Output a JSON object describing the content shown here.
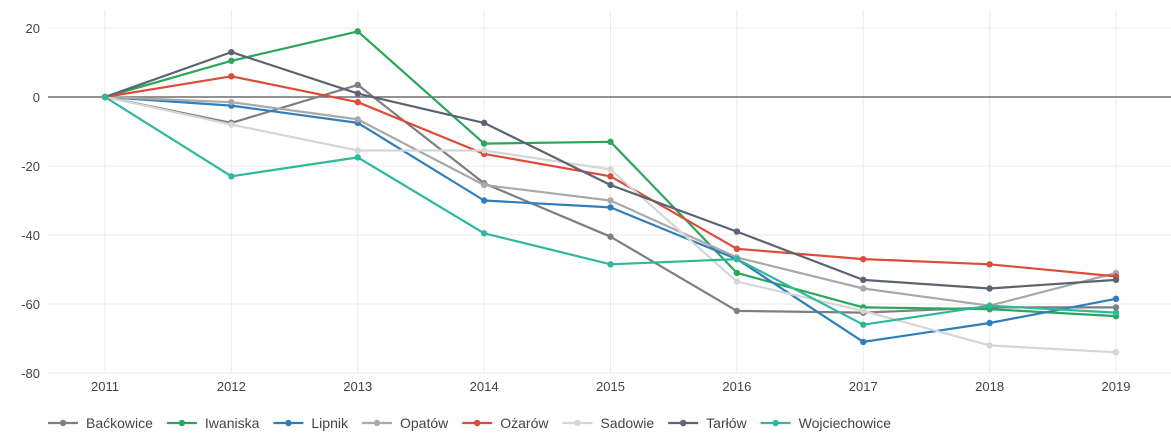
{
  "chart_data": {
    "type": "line",
    "x": [
      2011,
      2012,
      2013,
      2014,
      2015,
      2016,
      2017,
      2018,
      2019
    ],
    "ylim": [
      -80,
      20
    ],
    "yticks": [
      -80,
      -60,
      -40,
      -20,
      0,
      20
    ],
    "grid": true,
    "zero_line": true,
    "legend_position": "bottom",
    "title": "",
    "xlabel": "",
    "ylabel": "",
    "series": [
      {
        "name": "Baćkowice",
        "color": "#7f7f7f",
        "values": [
          0,
          -7.5,
          3.5,
          -25,
          -40.5,
          -62,
          -62.5,
          -61,
          -61
        ]
      },
      {
        "name": "Iwaniska",
        "color": "#2ca65a",
        "values": [
          0,
          10.5,
          19,
          -13.5,
          -13,
          -51,
          -61,
          -61.5,
          -63.5
        ]
      },
      {
        "name": "Lipnik",
        "color": "#2f7ebc",
        "values": [
          0,
          -2.5,
          -7.5,
          -30,
          -32,
          -47,
          -71,
          -65.5,
          -58.5
        ]
      },
      {
        "name": "Opatów",
        "color": "#a9a9a9",
        "values": [
          0,
          -1.5,
          -6.5,
          -25.5,
          -30,
          -46.5,
          -55.5,
          -60.5,
          -51
        ]
      },
      {
        "name": "Ożarów",
        "color": "#dd4b39",
        "values": [
          0,
          6,
          -1.5,
          -16.5,
          -23,
          -44,
          -47,
          -48.5,
          -52
        ]
      },
      {
        "name": "Sadowie",
        "color": "#d6d6d6",
        "values": [
          0,
          -8,
          -15.5,
          -15.5,
          -21,
          -53.5,
          -62,
          -72,
          -74
        ]
      },
      {
        "name": "Tarłów",
        "color": "#5b6472",
        "values": [
          0,
          13,
          1,
          -7.5,
          -25.5,
          -39,
          -53,
          -55.5,
          -53
        ]
      },
      {
        "name": "Wojciechowice",
        "color": "#2fb89c",
        "values": [
          0,
          -23,
          -17.5,
          -39.5,
          -48.5,
          -47,
          -66,
          -60.5,
          -62.5
        ]
      }
    ]
  }
}
